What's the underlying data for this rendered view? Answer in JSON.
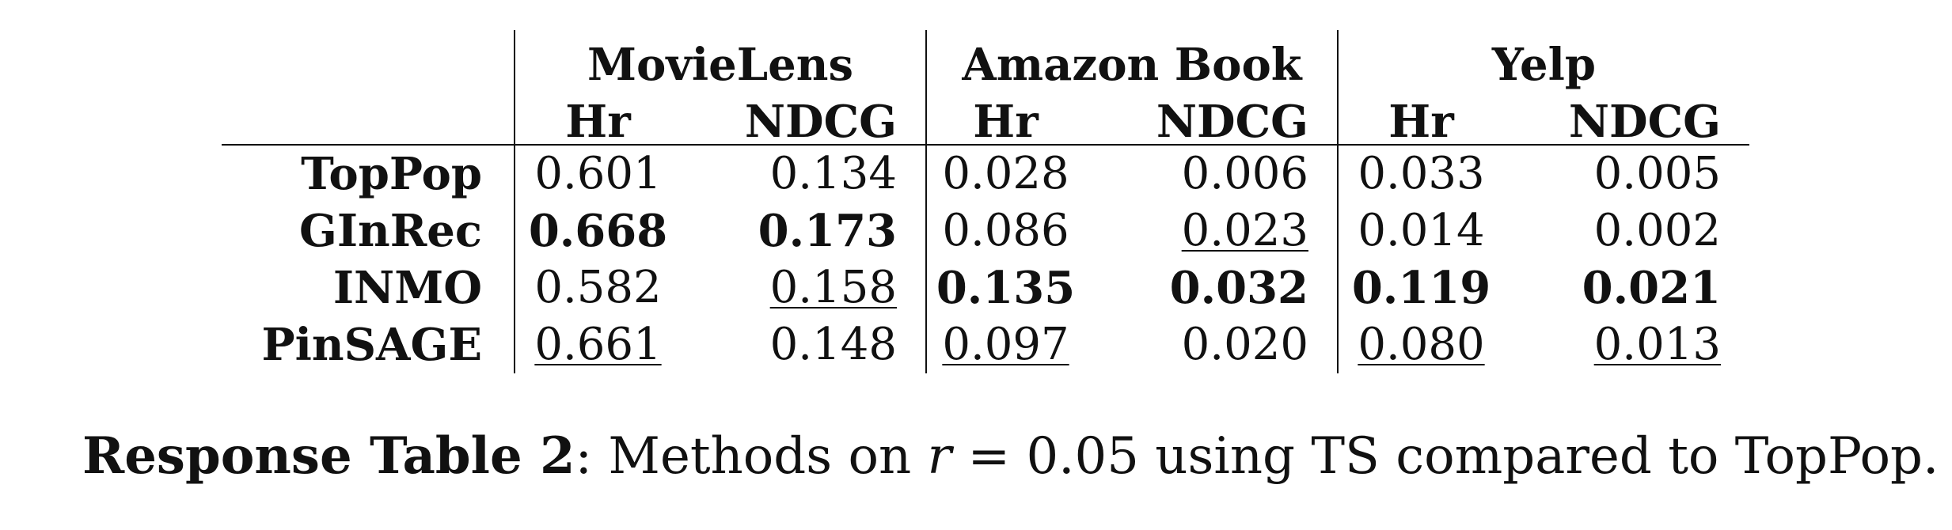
{
  "table": {
    "groups": [
      "MovieLens",
      "Amazon Book",
      "Yelp"
    ],
    "metrics": [
      "Hr",
      "NDCG",
      "Hr",
      "NDCG",
      "Hr",
      "NDCG"
    ],
    "rows": [
      {
        "method": "TopPop",
        "values": [
          "0.601",
          "0.134",
          "0.028",
          "0.006",
          "0.033",
          "0.005"
        ],
        "styles": [
          "plain",
          "plain",
          "plain",
          "plain",
          "plain",
          "plain"
        ]
      },
      {
        "method": "GInRec",
        "values": [
          "0.668",
          "0.173",
          "0.086",
          "0.023",
          "0.014",
          "0.002"
        ],
        "styles": [
          "bold",
          "bold",
          "plain",
          "underline",
          "plain",
          "plain"
        ]
      },
      {
        "method": "INMO",
        "values": [
          "0.582",
          "0.158",
          "0.135",
          "0.032",
          "0.119",
          "0.021"
        ],
        "styles": [
          "plain",
          "underline",
          "bold",
          "bold",
          "bold",
          "bold"
        ]
      },
      {
        "method": "PinSAGE",
        "values": [
          "0.661",
          "0.148",
          "0.097",
          "0.020",
          "0.080",
          "0.013"
        ],
        "styles": [
          "underline",
          "plain",
          "underline",
          "plain",
          "underline",
          "underline"
        ]
      }
    ]
  },
  "caption": {
    "label": "Response Table 2",
    "sep": ": ",
    "text_before_math": "Methods on ",
    "math_var": "r",
    "text_after_math": " = 0.05 using TS compared to TopPop."
  }
}
